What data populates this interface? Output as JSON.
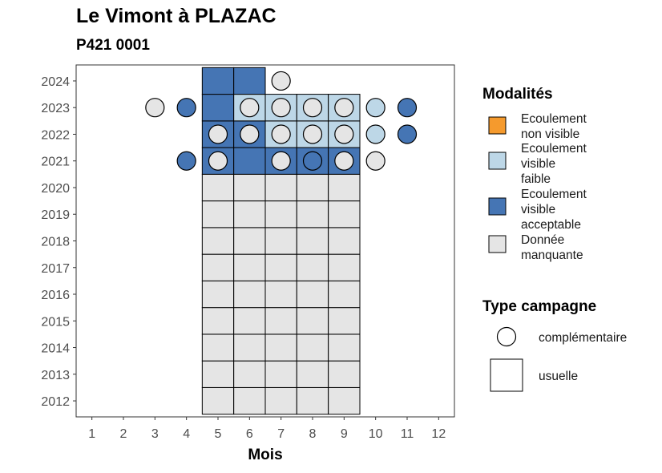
{
  "chart_data": {
    "type": "heatmap",
    "title": "Le Vimont à PLAZAC",
    "subtitle": "P421 0001",
    "xlabel": "Mois",
    "x_ticks": [
      "1",
      "2",
      "3",
      "4",
      "5",
      "6",
      "7",
      "8",
      "9",
      "10",
      "11",
      "12"
    ],
    "y_ticks": [
      "2012",
      "2013",
      "2014",
      "2015",
      "2016",
      "2017",
      "2018",
      "2019",
      "2020",
      "2021",
      "2022",
      "2023",
      "2024"
    ],
    "xlim": [
      0.5,
      12.5
    ],
    "ylim": [
      2011.4,
      2024.6
    ],
    "grid": false,
    "legend_placement": "right",
    "colors": {
      "nonvisible": "#f59a2d",
      "faible": "#bdd7e7",
      "acceptable": "#4575b4",
      "manquante": "#e5e5e5"
    },
    "modalites": {
      "title": "Modalités",
      "items": [
        {
          "key": "nonvisible",
          "lines": [
            "Ecoulement",
            "non visible"
          ]
        },
        {
          "key": "faible",
          "lines": [
            "Ecoulement",
            "visible",
            "faible"
          ]
        },
        {
          "key": "acceptable",
          "lines": [
            "Ecoulement",
            "visible",
            "acceptable"
          ]
        },
        {
          "key": "manquante",
          "lines": [
            "Donnée",
            "manquante"
          ]
        }
      ]
    },
    "type_campagne": {
      "title": "Type campagne",
      "items": [
        {
          "shape": "circle",
          "label": "complémentaire"
        },
        {
          "shape": "square",
          "label": "usuelle"
        }
      ]
    },
    "usuelle": [
      {
        "year": 2012,
        "month": 5,
        "m": "manquante"
      },
      {
        "year": 2012,
        "month": 6,
        "m": "manquante"
      },
      {
        "year": 2012,
        "month": 7,
        "m": "manquante"
      },
      {
        "year": 2012,
        "month": 8,
        "m": "manquante"
      },
      {
        "year": 2012,
        "month": 9,
        "m": "manquante"
      },
      {
        "year": 2013,
        "month": 5,
        "m": "manquante"
      },
      {
        "year": 2013,
        "month": 6,
        "m": "manquante"
      },
      {
        "year": 2013,
        "month": 7,
        "m": "manquante"
      },
      {
        "year": 2013,
        "month": 8,
        "m": "manquante"
      },
      {
        "year": 2013,
        "month": 9,
        "m": "manquante"
      },
      {
        "year": 2014,
        "month": 5,
        "m": "manquante"
      },
      {
        "year": 2014,
        "month": 6,
        "m": "manquante"
      },
      {
        "year": 2014,
        "month": 7,
        "m": "manquante"
      },
      {
        "year": 2014,
        "month": 8,
        "m": "manquante"
      },
      {
        "year": 2014,
        "month": 9,
        "m": "manquante"
      },
      {
        "year": 2015,
        "month": 5,
        "m": "manquante"
      },
      {
        "year": 2015,
        "month": 6,
        "m": "manquante"
      },
      {
        "year": 2015,
        "month": 7,
        "m": "manquante"
      },
      {
        "year": 2015,
        "month": 8,
        "m": "manquante"
      },
      {
        "year": 2015,
        "month": 9,
        "m": "manquante"
      },
      {
        "year": 2016,
        "month": 5,
        "m": "manquante"
      },
      {
        "year": 2016,
        "month": 6,
        "m": "manquante"
      },
      {
        "year": 2016,
        "month": 7,
        "m": "manquante"
      },
      {
        "year": 2016,
        "month": 8,
        "m": "manquante"
      },
      {
        "year": 2016,
        "month": 9,
        "m": "manquante"
      },
      {
        "year": 2017,
        "month": 5,
        "m": "manquante"
      },
      {
        "year": 2017,
        "month": 6,
        "m": "manquante"
      },
      {
        "year": 2017,
        "month": 7,
        "m": "manquante"
      },
      {
        "year": 2017,
        "month": 8,
        "m": "manquante"
      },
      {
        "year": 2017,
        "month": 9,
        "m": "manquante"
      },
      {
        "year": 2018,
        "month": 5,
        "m": "manquante"
      },
      {
        "year": 2018,
        "month": 6,
        "m": "manquante"
      },
      {
        "year": 2018,
        "month": 7,
        "m": "manquante"
      },
      {
        "year": 2018,
        "month": 8,
        "m": "manquante"
      },
      {
        "year": 2018,
        "month": 9,
        "m": "manquante"
      },
      {
        "year": 2019,
        "month": 5,
        "m": "manquante"
      },
      {
        "year": 2019,
        "month": 6,
        "m": "manquante"
      },
      {
        "year": 2019,
        "month": 7,
        "m": "manquante"
      },
      {
        "year": 2019,
        "month": 8,
        "m": "manquante"
      },
      {
        "year": 2019,
        "month": 9,
        "m": "manquante"
      },
      {
        "year": 2020,
        "month": 5,
        "m": "manquante"
      },
      {
        "year": 2020,
        "month": 6,
        "m": "manquante"
      },
      {
        "year": 2020,
        "month": 7,
        "m": "manquante"
      },
      {
        "year": 2020,
        "month": 8,
        "m": "manquante"
      },
      {
        "year": 2020,
        "month": 9,
        "m": "manquante"
      },
      {
        "year": 2021,
        "month": 5,
        "m": "acceptable"
      },
      {
        "year": 2021,
        "month": 6,
        "m": "acceptable"
      },
      {
        "year": 2021,
        "month": 7,
        "m": "acceptable"
      },
      {
        "year": 2021,
        "month": 8,
        "m": "acceptable"
      },
      {
        "year": 2021,
        "month": 9,
        "m": "acceptable"
      },
      {
        "year": 2022,
        "month": 5,
        "m": "acceptable"
      },
      {
        "year": 2022,
        "month": 6,
        "m": "acceptable"
      },
      {
        "year": 2022,
        "month": 7,
        "m": "faible"
      },
      {
        "year": 2022,
        "month": 8,
        "m": "faible"
      },
      {
        "year": 2022,
        "month": 9,
        "m": "faible"
      },
      {
        "year": 2023,
        "month": 5,
        "m": "acceptable"
      },
      {
        "year": 2023,
        "month": 6,
        "m": "faible"
      },
      {
        "year": 2023,
        "month": 7,
        "m": "faible"
      },
      {
        "year": 2023,
        "month": 8,
        "m": "faible"
      },
      {
        "year": 2023,
        "month": 9,
        "m": "faible"
      },
      {
        "year": 2024,
        "month": 5,
        "m": "acceptable"
      },
      {
        "year": 2024,
        "month": 6,
        "m": "acceptable"
      }
    ],
    "complementaire": [
      {
        "year": 2024,
        "month": 7,
        "m": "manquante"
      },
      {
        "year": 2023,
        "month": 3,
        "m": "manquante"
      },
      {
        "year": 2023,
        "month": 4,
        "m": "acceptable"
      },
      {
        "year": 2023,
        "month": 6,
        "m": "manquante"
      },
      {
        "year": 2023,
        "month": 7,
        "m": "manquante"
      },
      {
        "year": 2023,
        "month": 8,
        "m": "manquante"
      },
      {
        "year": 2023,
        "month": 9,
        "m": "manquante"
      },
      {
        "year": 2023,
        "month": 10,
        "m": "faible"
      },
      {
        "year": 2023,
        "month": 11,
        "m": "acceptable"
      },
      {
        "year": 2022,
        "month": 5,
        "m": "manquante"
      },
      {
        "year": 2022,
        "month": 6,
        "m": "manquante"
      },
      {
        "year": 2022,
        "month": 7,
        "m": "manquante"
      },
      {
        "year": 2022,
        "month": 8,
        "m": "manquante"
      },
      {
        "year": 2022,
        "month": 9,
        "m": "manquante"
      },
      {
        "year": 2022,
        "month": 10,
        "m": "faible"
      },
      {
        "year": 2022,
        "month": 11,
        "m": "acceptable"
      },
      {
        "year": 2021,
        "month": 4,
        "m": "acceptable"
      },
      {
        "year": 2021,
        "month": 5,
        "m": "manquante"
      },
      {
        "year": 2021,
        "month": 7,
        "m": "manquante"
      },
      {
        "year": 2021,
        "month": 8,
        "m": "acceptable"
      },
      {
        "year": 2021,
        "month": 9,
        "m": "manquante"
      },
      {
        "year": 2021,
        "month": 10,
        "m": "manquante"
      }
    ]
  }
}
